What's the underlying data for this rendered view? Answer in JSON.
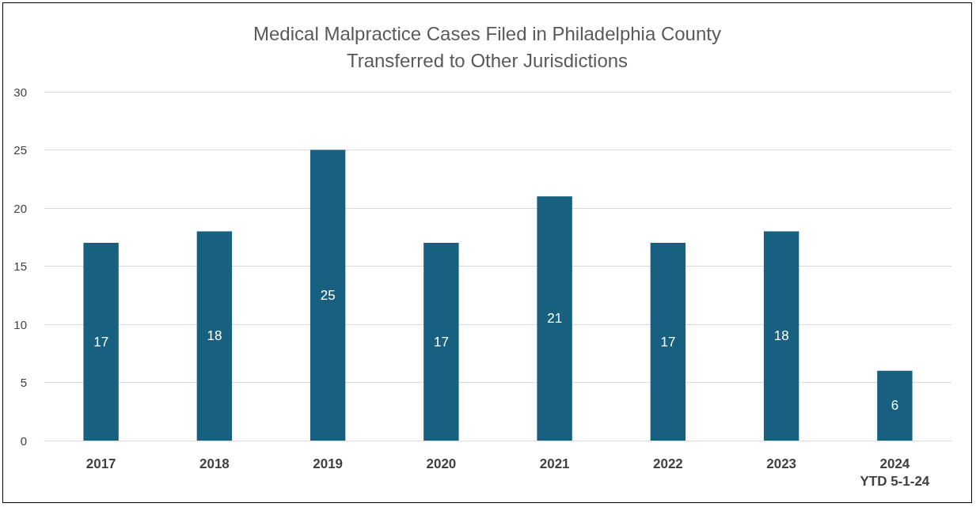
{
  "chart_data": {
    "type": "bar",
    "title": "Medical Malpractice Cases Filed in Philadelphia County\nTransferred to Other Jurisdictions",
    "categories": [
      "2017",
      "2018",
      "2019",
      "2020",
      "2021",
      "2022",
      "2023",
      "2024\nYTD 5-1-24"
    ],
    "values": [
      17,
      18,
      25,
      17,
      21,
      17,
      18,
      6
    ],
    "color": "#17607f",
    "ylim": [
      0,
      30
    ],
    "yticks": [
      0,
      5,
      10,
      15,
      20,
      25,
      30
    ],
    "grid": "y",
    "data_labels": true
  }
}
